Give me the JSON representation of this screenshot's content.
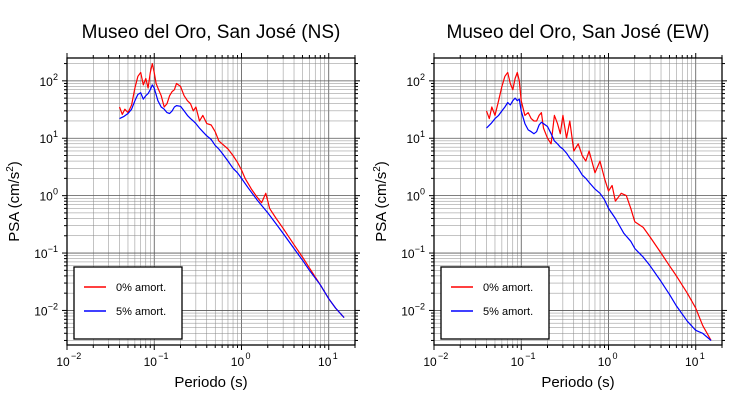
{
  "chart_data": [
    {
      "type": "line",
      "title": "Museo del Oro, San José (NS)",
      "xlabel": "Periodo (s)",
      "ylabel_parts": [
        "PSA (cm/s",
        "2",
        ")"
      ],
      "x_scale": "log",
      "y_scale": "log",
      "xlim": [
        0.01,
        20
      ],
      "ylim": [
        0.0025,
        250
      ],
      "grid": true,
      "legend_position": "bottom-left",
      "xticks": [
        {
          "base": "10",
          "exp": "−2"
        },
        {
          "base": "10",
          "exp": "−1"
        },
        {
          "base": "10",
          "exp": "0"
        },
        {
          "base": "10",
          "exp": "1"
        }
      ],
      "yticks": [
        {
          "base": "10",
          "exp": "−2"
        },
        {
          "base": "10",
          "exp": "−1"
        },
        {
          "base": "10",
          "exp": "0"
        },
        {
          "base": "10",
          "exp": "1"
        },
        {
          "base": "10",
          "exp": "2"
        }
      ],
      "series": [
        {
          "name": "0% amort.",
          "color": "#ff0000",
          "x": [
            0.04,
            0.043,
            0.046,
            0.05,
            0.055,
            0.06,
            0.065,
            0.07,
            0.075,
            0.08,
            0.085,
            0.09,
            0.095,
            0.1,
            0.105,
            0.11,
            0.12,
            0.13,
            0.14,
            0.15,
            0.16,
            0.17,
            0.18,
            0.2,
            0.22,
            0.24,
            0.26,
            0.28,
            0.3,
            0.33,
            0.36,
            0.4,
            0.45,
            0.5,
            0.55,
            0.6,
            0.7,
            0.8,
            0.9,
            1.0,
            1.1,
            1.2,
            1.3,
            1.5,
            1.7,
            1.9,
            2.1,
            2.5,
            3,
            4,
            5,
            6,
            8,
            10,
            12,
            15
          ],
          "y": [
            35,
            26,
            32,
            28,
            38,
            75,
            120,
            140,
            85,
            110,
            75,
            140,
            200,
            140,
            90,
            75,
            55,
            35,
            40,
            55,
            65,
            70,
            90,
            80,
            55,
            45,
            40,
            30,
            35,
            20,
            25,
            18,
            17,
            13,
            9,
            8,
            6.5,
            5,
            3.8,
            2.8,
            2.0,
            1.6,
            1.3,
            0.95,
            0.75,
            1.1,
            0.6,
            0.4,
            0.27,
            0.14,
            0.085,
            0.055,
            0.028,
            0.016,
            0.011,
            0.0075
          ]
        },
        {
          "name": "5% amort.",
          "color": "#0000ff",
          "x": [
            0.04,
            0.045,
            0.05,
            0.055,
            0.06,
            0.065,
            0.07,
            0.075,
            0.08,
            0.085,
            0.09,
            0.095,
            0.1,
            0.11,
            0.12,
            0.13,
            0.14,
            0.15,
            0.16,
            0.17,
            0.18,
            0.2,
            0.22,
            0.24,
            0.26,
            0.28,
            0.3,
            0.33,
            0.36,
            0.4,
            0.45,
            0.5,
            0.55,
            0.6,
            0.7,
            0.8,
            0.9,
            1.0,
            1.2,
            1.5,
            2,
            2.5,
            3,
            4,
            5,
            6,
            8,
            10,
            12,
            15
          ],
          "y": [
            22,
            24,
            27,
            32,
            45,
            58,
            62,
            48,
            55,
            60,
            70,
            85,
            75,
            45,
            35,
            32,
            28,
            27,
            30,
            35,
            37,
            36,
            30,
            25,
            22,
            20,
            18,
            15,
            13,
            11,
            9.5,
            7.5,
            6.5,
            5.5,
            4.0,
            3.0,
            2.5,
            2.0,
            1.35,
            0.85,
            0.5,
            0.32,
            0.22,
            0.12,
            0.075,
            0.05,
            0.028,
            0.016,
            0.011,
            0.0075
          ]
        }
      ]
    },
    {
      "type": "line",
      "title": "Museo del Oro, San José (EW)",
      "xlabel": "Periodo (s)",
      "ylabel_parts": [
        "PSA (cm/s",
        "2",
        ")"
      ],
      "x_scale": "log",
      "y_scale": "log",
      "xlim": [
        0.01,
        20
      ],
      "ylim": [
        0.0025,
        250
      ],
      "grid": true,
      "legend_position": "bottom-left",
      "xticks": [
        {
          "base": "10",
          "exp": "−2"
        },
        {
          "base": "10",
          "exp": "−1"
        },
        {
          "base": "10",
          "exp": "0"
        },
        {
          "base": "10",
          "exp": "1"
        }
      ],
      "yticks": [
        {
          "base": "10",
          "exp": "−2"
        },
        {
          "base": "10",
          "exp": "−1"
        },
        {
          "base": "10",
          "exp": "0"
        },
        {
          "base": "10",
          "exp": "1"
        },
        {
          "base": "10",
          "exp": "2"
        }
      ],
      "series": [
        {
          "name": "0% amort.",
          "color": "#ff0000",
          "x": [
            0.04,
            0.043,
            0.046,
            0.05,
            0.055,
            0.06,
            0.065,
            0.07,
            0.075,
            0.08,
            0.085,
            0.09,
            0.095,
            0.1,
            0.11,
            0.12,
            0.13,
            0.14,
            0.15,
            0.16,
            0.17,
            0.18,
            0.2,
            0.22,
            0.24,
            0.26,
            0.28,
            0.3,
            0.33,
            0.36,
            0.4,
            0.45,
            0.5,
            0.55,
            0.6,
            0.7,
            0.8,
            0.9,
            1.0,
            1.1,
            1.2,
            1.4,
            1.6,
            1.8,
            2.0,
            2.5,
            3,
            4,
            5,
            6,
            8,
            10,
            12,
            15
          ],
          "y": [
            30,
            22,
            35,
            25,
            45,
            80,
            120,
            140,
            90,
            70,
            110,
            140,
            100,
            45,
            25,
            28,
            22,
            20,
            20,
            25,
            28,
            15,
            10,
            8,
            25,
            18,
            12,
            25,
            10,
            20,
            6,
            8,
            5,
            4,
            6,
            2.5,
            4,
            2,
            1.2,
            1.5,
            0.8,
            1.1,
            1.0,
            0.6,
            0.35,
            0.28,
            0.19,
            0.1,
            0.06,
            0.04,
            0.02,
            0.011,
            0.0055,
            0.003
          ]
        },
        {
          "name": "5% amort.",
          "color": "#0000ff",
          "x": [
            0.04,
            0.045,
            0.05,
            0.055,
            0.06,
            0.065,
            0.07,
            0.075,
            0.08,
            0.085,
            0.09,
            0.095,
            0.1,
            0.11,
            0.12,
            0.13,
            0.14,
            0.15,
            0.16,
            0.17,
            0.18,
            0.2,
            0.22,
            0.24,
            0.26,
            0.28,
            0.3,
            0.33,
            0.36,
            0.4,
            0.45,
            0.5,
            0.55,
            0.6,
            0.7,
            0.8,
            0.9,
            1.0,
            1.2,
            1.5,
            1.8,
            2.0,
            2.5,
            3,
            4,
            5,
            6,
            8,
            10,
            12,
            15
          ],
          "y": [
            15,
            18,
            22,
            25,
            30,
            35,
            42,
            38,
            45,
            50,
            45,
            48,
            30,
            18,
            14,
            13,
            12,
            13,
            17,
            19,
            18,
            16,
            12,
            9,
            8,
            7,
            6.5,
            5.5,
            4.5,
            3.8,
            3.0,
            2.3,
            2.0,
            1.7,
            1.3,
            1.1,
            0.85,
            0.6,
            0.4,
            0.22,
            0.16,
            0.12,
            0.085,
            0.06,
            0.032,
            0.019,
            0.012,
            0.0065,
            0.0045,
            0.004,
            0.003
          ]
        }
      ]
    }
  ]
}
